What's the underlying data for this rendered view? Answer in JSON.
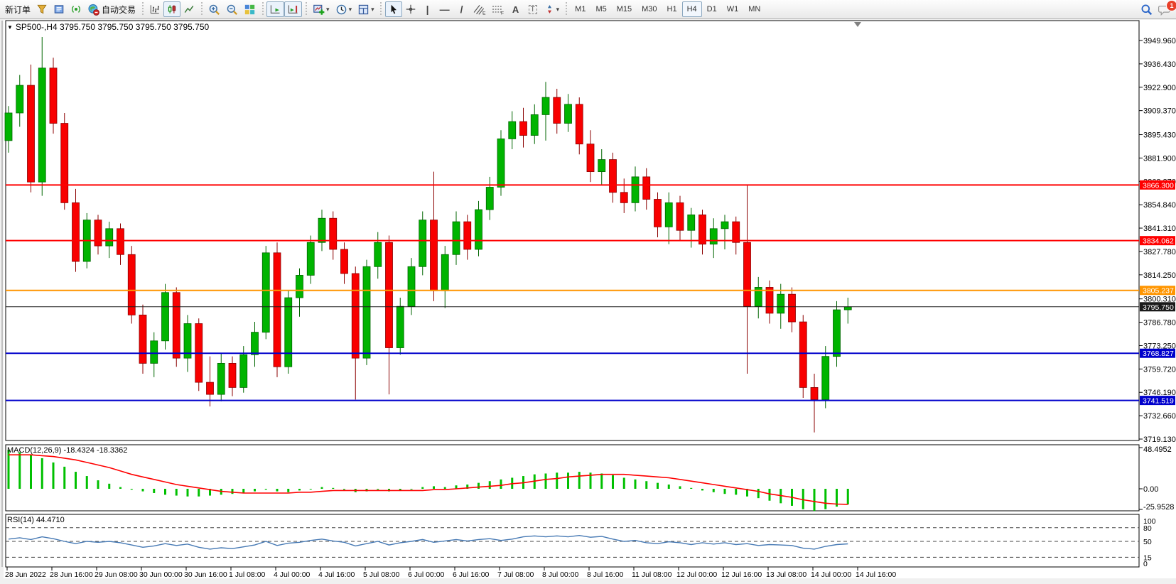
{
  "toolbar": {
    "new_order_label": "新订单",
    "auto_trading_label": "自动交易",
    "timeframes": [
      "M1",
      "M5",
      "M15",
      "M30",
      "H1",
      "H4",
      "D1",
      "W1",
      "MN"
    ],
    "active_timeframe": "H4",
    "notification_count": "1",
    "tool_glyphs": {
      "vertical_line": "|",
      "horizontal_line": "—",
      "trend_line": "/",
      "text": "A",
      "text_label": "T"
    }
  },
  "chart_data": [
    {
      "type": "candlestick",
      "symbol": "SP500-",
      "timeframe": "H4",
      "title": "SP500-,H4  3795.750 3795.750 3795.750 3795.750",
      "bull_color": "#00b400",
      "bear_color": "#f80000",
      "ylim": [
        3713,
        3961
      ],
      "price_axis_labels": [
        "3949.960",
        "3936.430",
        "3922.900",
        "3909.370",
        "3895.430",
        "3881.900",
        "3868.370",
        "3854.840",
        "3841.310",
        "3827.780",
        "3814.250",
        "3800.310",
        "3786.780",
        "3773.250",
        "3759.720",
        "3746.190",
        "3732.660",
        "3719.130"
      ],
      "hlines": [
        {
          "price": 3866.3,
          "label": "3866.300",
          "color": "#ff0000",
          "w": 2
        },
        {
          "price": 3834.062,
          "label": "3834.062",
          "color": "#ff0000",
          "w": 2
        },
        {
          "price": 3805.237,
          "label": "3805.237",
          "color": "#ff9500",
          "w": 2
        },
        {
          "price": 3795.75,
          "label": "3795.750",
          "color": "#1a1a1a",
          "w": 1
        },
        {
          "price": 3768.827,
          "label": "3768.827",
          "color": "#0000cc",
          "w": 2
        },
        {
          "price": 3741.519,
          "label": "3741.519",
          "color": "#0000cc",
          "w": 2
        }
      ],
      "x_labels": [
        "28 Jun 2022",
        "28 Jun 16:00",
        "29 Jun 08:00",
        "30 Jun 00:00",
        "30 Jun 16:00",
        "1 Jul 08:00",
        "4 Jul 00:00",
        "4 Jul 16:00",
        "5 Jul 08:00",
        "6 Jul 00:00",
        "6 Jul 16:00",
        "7 Jul 08:00",
        "8 Jul 00:00",
        "8 Jul 16:00",
        "11 Jul 08:00",
        "12 Jul 00:00",
        "12 Jul 16:00",
        "13 Jul 08:00",
        "14 Jul 00:00",
        "14 Jul 16:00"
      ],
      "candles": [
        [
          3892,
          3912,
          3885,
          3908
        ],
        [
          3908,
          3930,
          3900,
          3924
        ],
        [
          3924,
          3936,
          3862,
          3868
        ],
        [
          3868,
          3952,
          3860,
          3934
        ],
        [
          3934,
          3940,
          3896,
          3902
        ],
        [
          3902,
          3908,
          3852,
          3856
        ],
        [
          3856,
          3864,
          3816,
          3822
        ],
        [
          3822,
          3850,
          3818,
          3846
        ],
        [
          3846,
          3849,
          3826,
          3831
        ],
        [
          3831,
          3845,
          3824,
          3841
        ],
        [
          3841,
          3844,
          3820,
          3826
        ],
        [
          3826,
          3831,
          3786,
          3791
        ],
        [
          3791,
          3797,
          3757,
          3763
        ],
        [
          3763,
          3781,
          3755,
          3776
        ],
        [
          3776,
          3809,
          3771,
          3804
        ],
        [
          3804,
          3807,
          3761,
          3766
        ],
        [
          3766,
          3791,
          3758,
          3786
        ],
        [
          3786,
          3789,
          3747,
          3752
        ],
        [
          3752,
          3767,
          3738,
          3745
        ],
        [
          3745,
          3769,
          3741,
          3763
        ],
        [
          3763,
          3767,
          3744,
          3749
        ],
        [
          3749,
          3773,
          3746,
          3768
        ],
        [
          3768,
          3787,
          3761,
          3781
        ],
        [
          3781,
          3831,
          3777,
          3827
        ],
        [
          3827,
          3833,
          3755,
          3761
        ],
        [
          3761,
          3805,
          3757,
          3801
        ],
        [
          3801,
          3818,
          3790,
          3814
        ],
        [
          3814,
          3837,
          3809,
          3833
        ],
        [
          3833,
          3852,
          3828,
          3847
        ],
        [
          3847,
          3851,
          3823,
          3829
        ],
        [
          3829,
          3833,
          3809,
          3815
        ],
        [
          3815,
          3819,
          3742,
          3766
        ],
        [
          3766,
          3823,
          3762,
          3819
        ],
        [
          3819,
          3839,
          3812,
          3833
        ],
        [
          3833,
          3837,
          3745,
          3772
        ],
        [
          3772,
          3801,
          3768,
          3796
        ],
        [
          3796,
          3824,
          3791,
          3819
        ],
        [
          3819,
          3851,
          3814,
          3846
        ],
        [
          3846,
          3874,
          3799,
          3805
        ],
        [
          3805,
          3831,
          3795,
          3826
        ],
        [
          3826,
          3851,
          3820,
          3845
        ],
        [
          3845,
          3849,
          3823,
          3829
        ],
        [
          3829,
          3857,
          3825,
          3852
        ],
        [
          3852,
          3871,
          3846,
          3865
        ],
        [
          3865,
          3898,
          3860,
          3893
        ],
        [
          3893,
          3909,
          3887,
          3903
        ],
        [
          3903,
          3911,
          3888,
          3895
        ],
        [
          3895,
          3913,
          3890,
          3907
        ],
        [
          3907,
          3926,
          3892,
          3917
        ],
        [
          3917,
          3922,
          3896,
          3902
        ],
        [
          3902,
          3919,
          3897,
          3913
        ],
        [
          3913,
          3917,
          3884,
          3890
        ],
        [
          3890,
          3898,
          3868,
          3874
        ],
        [
          3874,
          3887,
          3866,
          3881
        ],
        [
          3881,
          3885,
          3856,
          3862
        ],
        [
          3862,
          3870,
          3850,
          3856
        ],
        [
          3856,
          3877,
          3851,
          3871
        ],
        [
          3871,
          3876,
          3852,
          3858
        ],
        [
          3858,
          3862,
          3836,
          3842
        ],
        [
          3842,
          3862,
          3832,
          3856
        ],
        [
          3856,
          3860,
          3834,
          3840
        ],
        [
          3840,
          3853,
          3830,
          3849
        ],
        [
          3849,
          3852,
          3826,
          3832
        ],
        [
          3832,
          3847,
          3824,
          3841
        ],
        [
          3841,
          3849,
          3829,
          3845
        ],
        [
          3845,
          3848,
          3826,
          3833
        ],
        [
          3833,
          3866,
          3757,
          3796
        ],
        [
          3796,
          3813,
          3789,
          3807
        ],
        [
          3807,
          3811,
          3786,
          3792
        ],
        [
          3792,
          3809,
          3783,
          3803
        ],
        [
          3803,
          3807,
          3781,
          3787
        ],
        [
          3787,
          3791,
          3743,
          3749
        ],
        [
          3749,
          3757,
          3723,
          3742
        ],
        [
          3742,
          3773,
          3737,
          3767
        ],
        [
          3767,
          3799,
          3761,
          3794
        ],
        [
          3794,
          3801,
          3786,
          3795.75
        ]
      ]
    },
    {
      "type": "bar",
      "name": "MACD",
      "params": "(12,26,9)",
      "label": "MACD(12,26,9) -18.4324 -18.3362",
      "current_values": "-18.4324 -18.3362",
      "histogram_color": "#00c000",
      "signal_color": "#ff0000",
      "axis_labels": [
        "48.4952",
        "0.00",
        "-25.9528"
      ],
      "axis_values": [
        48.4952,
        0,
        -25.9528
      ],
      "values": [
        46,
        43,
        40,
        36,
        31,
        26,
        20,
        15,
        10,
        6,
        2,
        -1,
        -3,
        -5,
        -7,
        -8,
        -9,
        -9,
        -8,
        -7,
        -6,
        -5,
        -3,
        -1,
        -3,
        -4,
        -2,
        0,
        2,
        1,
        -1,
        -4,
        -3,
        -1,
        -3,
        -2,
        0,
        2,
        3,
        2,
        4,
        5,
        7,
        9,
        11,
        13,
        15,
        17,
        18,
        19,
        19,
        20,
        19,
        18,
        16,
        13,
        11,
        9,
        7,
        5,
        3,
        1,
        -2,
        -4,
        -6,
        -7,
        -9,
        -11,
        -14,
        -17,
        -20,
        -24,
        -26,
        -24,
        -21,
        -18.43
      ],
      "signal_values": [
        40,
        40,
        40,
        39,
        38,
        36,
        34,
        31,
        28,
        25,
        21,
        17,
        14,
        11,
        8,
        5,
        3,
        1,
        -1,
        -3,
        -4,
        -5,
        -5,
        -5,
        -5,
        -5,
        -4,
        -4,
        -3,
        -2,
        -2,
        -2,
        -2,
        -2,
        -2,
        -2,
        -2,
        -2,
        -1,
        -1,
        0,
        1,
        2,
        3,
        4,
        6,
        7,
        9,
        11,
        12,
        14,
        15,
        16,
        17,
        17,
        17,
        16,
        15,
        14,
        13,
        11,
        9,
        7,
        5,
        3,
        1,
        -1,
        -3,
        -6,
        -8,
        -10,
        -13,
        -15,
        -17,
        -18,
        -18.34
      ]
    },
    {
      "type": "line",
      "name": "RSI",
      "params": "(14)",
      "label": "RSI(14) 44.4710",
      "current_value": "44.4710",
      "line_color": "#4679b4",
      "level_labels": [
        "100",
        "80",
        "50",
        "15",
        "0"
      ],
      "level_label_values": [
        100,
        80,
        50,
        15,
        0
      ],
      "dashed_levels": [
        80,
        50,
        15
      ],
      "values": [
        55,
        58,
        54,
        60,
        56,
        50,
        45,
        50,
        48,
        50,
        47,
        42,
        37,
        40,
        45,
        41,
        44,
        37,
        33,
        36,
        34,
        38,
        42,
        50,
        41,
        46,
        48,
        52,
        55,
        51,
        48,
        40,
        45,
        50,
        42,
        47,
        50,
        54,
        48,
        51,
        54,
        51,
        54,
        56,
        52,
        55,
        60,
        62,
        60,
        62,
        60,
        63,
        59,
        61,
        55,
        50,
        52,
        47,
        45,
        49,
        47,
        43,
        47,
        44,
        47,
        43,
        45,
        41,
        43,
        42,
        41,
        35,
        33,
        39,
        43,
        44.47
      ]
    }
  ]
}
